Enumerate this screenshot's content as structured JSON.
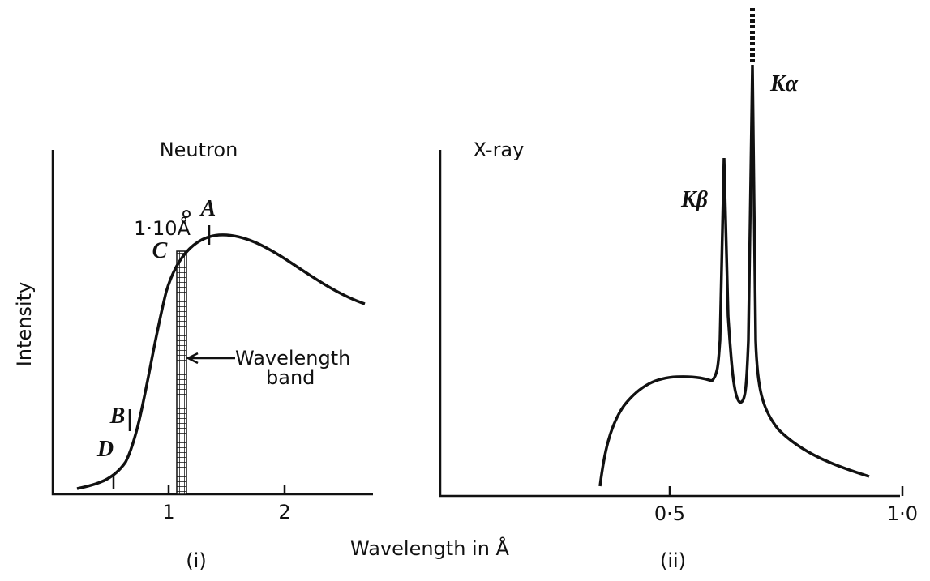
{
  "panels": [
    {
      "title": "Neutron",
      "y_label": "Intensity",
      "ticks": [
        "1",
        "2"
      ],
      "caption": "(i)",
      "labels": {
        "a": "A",
        "b": "B",
        "c": "C",
        "d": "D",
        "wavelength_mark": "1·10Å",
        "band_line1": "Wavelength",
        "band_line2": "band"
      }
    },
    {
      "title": "X-ray",
      "ticks": [
        "0·5",
        "1·0"
      ],
      "caption": "(ii)",
      "labels": {
        "k_beta": "Kβ",
        "k_alpha": "Kα"
      }
    }
  ],
  "x_label": "Wavelength in Å"
}
